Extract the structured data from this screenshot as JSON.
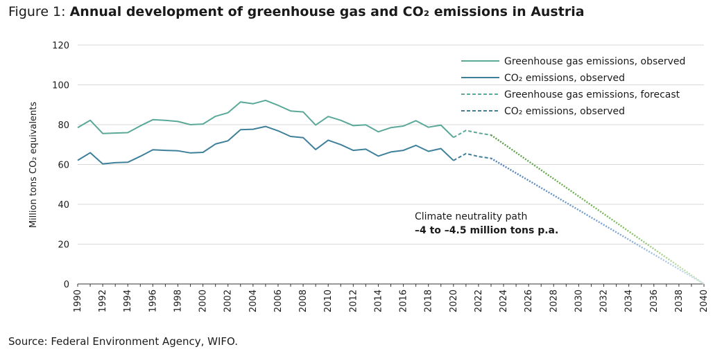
{
  "header": {
    "figure_label": "Figure 1: ",
    "title": "Annual development of greenhouse gas and CO₂ emissions in Austria"
  },
  "footer": {
    "source": "Source: Federal Environment Agency, WIFO."
  },
  "chart_data": {
    "type": "line",
    "title": "Annual development of greenhouse gas and CO₂ emissions in Austria",
    "xlabel": "",
    "ylabel": "Million tons CO₂ equivalents",
    "xlim": [
      1990,
      2040
    ],
    "ylim": [
      0,
      120
    ],
    "yticks": [
      0,
      20,
      40,
      60,
      80,
      100,
      120
    ],
    "xticks": [
      1990,
      1992,
      1994,
      1996,
      1998,
      2000,
      2002,
      2004,
      2006,
      2008,
      2010,
      2012,
      2014,
      2016,
      2018,
      2020,
      2022,
      2024,
      2026,
      2028,
      2030,
      2032,
      2034,
      2036,
      2038,
      2040
    ],
    "grid": "horizontal",
    "legend_position": "top-right",
    "colors": {
      "ghg": "#5aa898",
      "co2": "#3e7f9a",
      "path_ghg": "#6aaa3c",
      "path_co2": "#6f9bd1"
    },
    "series": [
      {
        "name": "Greenhouse gas emissions, observed",
        "style": "solid",
        "x": [
          1990,
          1991,
          1992,
          1993,
          1994,
          1995,
          1996,
          1997,
          1998,
          1999,
          2000,
          2001,
          2002,
          2003,
          2004,
          2005,
          2006,
          2007,
          2008,
          2009,
          2010,
          2011,
          2012,
          2013,
          2014,
          2015,
          2016,
          2017,
          2018,
          2019,
          2020
        ],
        "values": [
          78.5,
          82.2,
          75.6,
          75.8,
          76.0,
          79.4,
          82.5,
          82.2,
          81.6,
          80.0,
          80.3,
          84.2,
          86.0,
          91.4,
          90.5,
          92.2,
          89.7,
          86.9,
          86.4,
          79.8,
          84.1,
          82.2,
          79.5,
          79.9,
          76.4,
          78.5,
          79.3,
          82.0,
          78.7,
          79.8,
          73.6
        ]
      },
      {
        "name": "CO₂ emissions, observed",
        "style": "solid",
        "x": [
          1990,
          1991,
          1992,
          1993,
          1994,
          1995,
          1996,
          1997,
          1998,
          1999,
          2000,
          2001,
          2002,
          2003,
          2004,
          2005,
          2006,
          2007,
          2008,
          2009,
          2010,
          2011,
          2012,
          2013,
          2014,
          2015,
          2016,
          2017,
          2018,
          2019,
          2020
        ],
        "values": [
          62.1,
          65.9,
          60.3,
          60.9,
          61.1,
          64.1,
          67.4,
          67.1,
          66.9,
          65.8,
          66.1,
          70.3,
          71.9,
          77.5,
          77.7,
          79.1,
          76.9,
          74.1,
          73.5,
          67.5,
          72.2,
          70.0,
          67.1,
          67.7,
          64.2,
          66.3,
          67.1,
          69.6,
          66.6,
          68.0,
          62.0
        ]
      },
      {
        "name": "Greenhouse gas emissions, forecast",
        "style": "dashed",
        "x": [
          2020,
          2021,
          2022,
          2023
        ],
        "values": [
          73.6,
          77.1,
          75.8,
          74.8
        ]
      },
      {
        "name": "CO₂ emissions, observed",
        "style": "dashed",
        "x": [
          2020,
          2021,
          2022,
          2023
        ],
        "values": [
          62.0,
          65.5,
          64.0,
          63.1
        ]
      }
    ],
    "paths": [
      {
        "x": [
          2023,
          2040
        ],
        "values": [
          74.8,
          0
        ]
      },
      {
        "x": [
          2023,
          2040
        ],
        "values": [
          63.1,
          0
        ]
      }
    ],
    "annotation": {
      "line1": "Climate neutrality path",
      "line2": "–4 to –4.5 million tons p.a."
    }
  }
}
